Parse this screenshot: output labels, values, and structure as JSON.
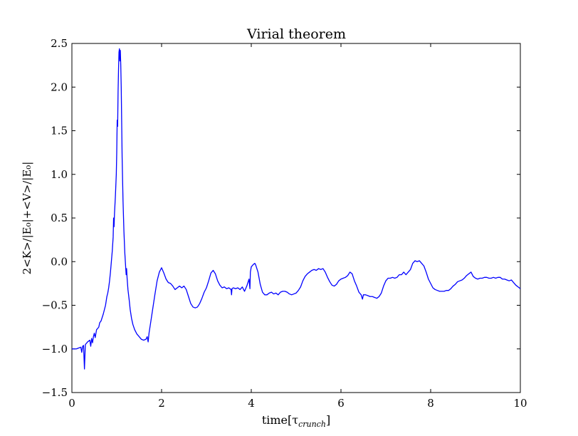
{
  "chart_data": {
    "type": "line",
    "title": "Virial theorem",
    "xlabel": "time[τ",
    "xlabel_sub": "crunch",
    "xlabel_close": "]",
    "ylabel": "2<K>/|E₀|+<V>/|E₀|",
    "xlim": [
      0,
      10
    ],
    "ylim": [
      -1.5,
      2.5
    ],
    "xticks": [
      0,
      2,
      4,
      6,
      8,
      10
    ],
    "xtick_labels": [
      "0",
      "2",
      "4",
      "6",
      "8",
      "10"
    ],
    "yticks": [
      -1.5,
      -1.0,
      -0.5,
      0.0,
      0.5,
      1.0,
      1.5,
      2.0,
      2.5
    ],
    "ytick_labels": [
      "−1.5",
      "−1.0",
      "−0.5",
      "0.0",
      "0.5",
      "1.0",
      "1.5",
      "2.0",
      "2.5"
    ],
    "grid": false,
    "series": [
      {
        "color": "#0000ff",
        "points": [
          [
            0.0,
            -1.0
          ],
          [
            0.1,
            -1.0
          ],
          [
            0.15,
            -0.99
          ],
          [
            0.2,
            -0.98
          ],
          [
            0.22,
            -1.04
          ],
          [
            0.24,
            -0.97
          ],
          [
            0.26,
            -0.96
          ],
          [
            0.28,
            -1.23
          ],
          [
            0.3,
            -0.95
          ],
          [
            0.35,
            -0.92
          ],
          [
            0.4,
            -0.9
          ],
          [
            0.42,
            -0.97
          ],
          [
            0.44,
            -0.88
          ],
          [
            0.46,
            -0.93
          ],
          [
            0.48,
            -0.86
          ],
          [
            0.5,
            -0.82
          ],
          [
            0.52,
            -0.87
          ],
          [
            0.55,
            -0.78
          ],
          [
            0.6,
            -0.75
          ],
          [
            0.62,
            -0.7
          ],
          [
            0.65,
            -0.68
          ],
          [
            0.7,
            -0.6
          ],
          [
            0.75,
            -0.5
          ],
          [
            0.78,
            -0.4
          ],
          [
            0.8,
            -0.36
          ],
          [
            0.82,
            -0.3
          ],
          [
            0.84,
            -0.22
          ],
          [
            0.86,
            -0.12
          ],
          [
            0.88,
            0.0
          ],
          [
            0.9,
            0.12
          ],
          [
            0.92,
            0.28
          ],
          [
            0.93,
            0.5
          ],
          [
            0.94,
            0.4
          ],
          [
            0.95,
            0.55
          ],
          [
            0.97,
            0.75
          ],
          [
            0.99,
            1.0
          ],
          [
            1.0,
            1.25
          ],
          [
            1.01,
            1.62
          ],
          [
            1.02,
            1.55
          ],
          [
            1.03,
            1.95
          ],
          [
            1.04,
            2.2
          ],
          [
            1.05,
            2.4
          ],
          [
            1.06,
            2.44
          ],
          [
            1.07,
            2.3
          ],
          [
            1.08,
            2.42
          ],
          [
            1.09,
            2.25
          ],
          [
            1.1,
            2.0
          ],
          [
            1.11,
            1.6
          ],
          [
            1.12,
            1.2
          ],
          [
            1.14,
            0.7
          ],
          [
            1.16,
            0.35
          ],
          [
            1.18,
            0.1
          ],
          [
            1.2,
            -0.07
          ],
          [
            1.21,
            -0.15
          ],
          [
            1.22,
            -0.08
          ],
          [
            1.23,
            -0.18
          ],
          [
            1.25,
            -0.32
          ],
          [
            1.28,
            -0.45
          ],
          [
            1.3,
            -0.55
          ],
          [
            1.33,
            -0.65
          ],
          [
            1.36,
            -0.72
          ],
          [
            1.4,
            -0.78
          ],
          [
            1.45,
            -0.83
          ],
          [
            1.5,
            -0.86
          ],
          [
            1.55,
            -0.89
          ],
          [
            1.6,
            -0.9
          ],
          [
            1.65,
            -0.89
          ],
          [
            1.68,
            -0.86
          ],
          [
            1.7,
            -0.92
          ],
          [
            1.72,
            -0.82
          ],
          [
            1.75,
            -0.72
          ],
          [
            1.8,
            -0.55
          ],
          [
            1.85,
            -0.38
          ],
          [
            1.9,
            -0.22
          ],
          [
            1.95,
            -0.12
          ],
          [
            2.0,
            -0.07
          ],
          [
            2.05,
            -0.13
          ],
          [
            2.1,
            -0.2
          ],
          [
            2.15,
            -0.24
          ],
          [
            2.2,
            -0.25
          ],
          [
            2.25,
            -0.28
          ],
          [
            2.3,
            -0.32
          ],
          [
            2.35,
            -0.3
          ],
          [
            2.4,
            -0.28
          ],
          [
            2.45,
            -0.3
          ],
          [
            2.5,
            -0.28
          ],
          [
            2.55,
            -0.32
          ],
          [
            2.6,
            -0.4
          ],
          [
            2.65,
            -0.48
          ],
          [
            2.7,
            -0.52
          ],
          [
            2.75,
            -0.53
          ],
          [
            2.8,
            -0.52
          ],
          [
            2.85,
            -0.48
          ],
          [
            2.9,
            -0.42
          ],
          [
            2.95,
            -0.35
          ],
          [
            3.0,
            -0.3
          ],
          [
            3.05,
            -0.22
          ],
          [
            3.1,
            -0.13
          ],
          [
            3.15,
            -0.1
          ],
          [
            3.2,
            -0.14
          ],
          [
            3.25,
            -0.22
          ],
          [
            3.3,
            -0.27
          ],
          [
            3.35,
            -0.3
          ],
          [
            3.4,
            -0.29
          ],
          [
            3.45,
            -0.31
          ],
          [
            3.5,
            -0.3
          ],
          [
            3.55,
            -0.32
          ],
          [
            3.56,
            -0.38
          ],
          [
            3.57,
            -0.31
          ],
          [
            3.6,
            -0.3
          ],
          [
            3.65,
            -0.31
          ],
          [
            3.7,
            -0.3
          ],
          [
            3.75,
            -0.32
          ],
          [
            3.8,
            -0.29
          ],
          [
            3.85,
            -0.34
          ],
          [
            3.9,
            -0.28
          ],
          [
            3.95,
            -0.2
          ],
          [
            3.97,
            -0.31
          ],
          [
            3.98,
            -0.12
          ],
          [
            4.0,
            -0.06
          ],
          [
            4.05,
            -0.03
          ],
          [
            4.08,
            -0.02
          ],
          [
            4.1,
            -0.04
          ],
          [
            4.15,
            -0.12
          ],
          [
            4.2,
            -0.26
          ],
          [
            4.25,
            -0.35
          ],
          [
            4.3,
            -0.38
          ],
          [
            4.35,
            -0.38
          ],
          [
            4.4,
            -0.36
          ],
          [
            4.45,
            -0.35
          ],
          [
            4.5,
            -0.37
          ],
          [
            4.55,
            -0.36
          ],
          [
            4.6,
            -0.38
          ],
          [
            4.65,
            -0.35
          ],
          [
            4.7,
            -0.34
          ],
          [
            4.75,
            -0.34
          ],
          [
            4.8,
            -0.35
          ],
          [
            4.85,
            -0.37
          ],
          [
            4.9,
            -0.38
          ],
          [
            4.95,
            -0.37
          ],
          [
            5.0,
            -0.36
          ],
          [
            5.05,
            -0.33
          ],
          [
            5.1,
            -0.29
          ],
          [
            5.15,
            -0.22
          ],
          [
            5.2,
            -0.17
          ],
          [
            5.25,
            -0.14
          ],
          [
            5.3,
            -0.12
          ],
          [
            5.35,
            -0.1
          ],
          [
            5.4,
            -0.09
          ],
          [
            5.45,
            -0.1
          ],
          [
            5.5,
            -0.08
          ],
          [
            5.55,
            -0.09
          ],
          [
            5.6,
            -0.08
          ],
          [
            5.65,
            -0.12
          ],
          [
            5.7,
            -0.18
          ],
          [
            5.75,
            -0.23
          ],
          [
            5.8,
            -0.27
          ],
          [
            5.85,
            -0.28
          ],
          [
            5.9,
            -0.26
          ],
          [
            5.95,
            -0.22
          ],
          [
            6.0,
            -0.2
          ],
          [
            6.05,
            -0.19
          ],
          [
            6.1,
            -0.18
          ],
          [
            6.15,
            -0.16
          ],
          [
            6.2,
            -0.12
          ],
          [
            6.25,
            -0.14
          ],
          [
            6.3,
            -0.22
          ],
          [
            6.35,
            -0.28
          ],
          [
            6.4,
            -0.35
          ],
          [
            6.45,
            -0.38
          ],
          [
            6.48,
            -0.43
          ],
          [
            6.5,
            -0.38
          ],
          [
            6.55,
            -0.38
          ],
          [
            6.6,
            -0.39
          ],
          [
            6.65,
            -0.4
          ],
          [
            6.7,
            -0.4
          ],
          [
            6.75,
            -0.41
          ],
          [
            6.8,
            -0.42
          ],
          [
            6.85,
            -0.4
          ],
          [
            6.9,
            -0.36
          ],
          [
            6.95,
            -0.28
          ],
          [
            7.0,
            -0.22
          ],
          [
            7.05,
            -0.19
          ],
          [
            7.1,
            -0.19
          ],
          [
            7.15,
            -0.18
          ],
          [
            7.2,
            -0.19
          ],
          [
            7.25,
            -0.18
          ],
          [
            7.3,
            -0.15
          ],
          [
            7.35,
            -0.15
          ],
          [
            7.4,
            -0.12
          ],
          [
            7.45,
            -0.15
          ],
          [
            7.5,
            -0.12
          ],
          [
            7.55,
            -0.09
          ],
          [
            7.6,
            -0.02
          ],
          [
            7.65,
            0.01
          ],
          [
            7.7,
            0.0
          ],
          [
            7.75,
            0.01
          ],
          [
            7.8,
            -0.02
          ],
          [
            7.85,
            -0.05
          ],
          [
            7.9,
            -0.12
          ],
          [
            7.95,
            -0.2
          ],
          [
            8.0,
            -0.25
          ],
          [
            8.05,
            -0.3
          ],
          [
            8.1,
            -0.32
          ],
          [
            8.15,
            -0.33
          ],
          [
            8.2,
            -0.34
          ],
          [
            8.25,
            -0.34
          ],
          [
            8.3,
            -0.34
          ],
          [
            8.35,
            -0.33
          ],
          [
            8.4,
            -0.33
          ],
          [
            8.45,
            -0.31
          ],
          [
            8.5,
            -0.28
          ],
          [
            8.55,
            -0.26
          ],
          [
            8.6,
            -0.23
          ],
          [
            8.65,
            -0.22
          ],
          [
            8.7,
            -0.21
          ],
          [
            8.75,
            -0.19
          ],
          [
            8.8,
            -0.16
          ],
          [
            8.85,
            -0.14
          ],
          [
            8.9,
            -0.12
          ],
          [
            8.95,
            -0.17
          ],
          [
            9.0,
            -0.19
          ],
          [
            9.05,
            -0.2
          ],
          [
            9.1,
            -0.19
          ],
          [
            9.15,
            -0.19
          ],
          [
            9.2,
            -0.18
          ],
          [
            9.25,
            -0.18
          ],
          [
            9.3,
            -0.19
          ],
          [
            9.35,
            -0.19
          ],
          [
            9.4,
            -0.18
          ],
          [
            9.45,
            -0.19
          ],
          [
            9.5,
            -0.18
          ],
          [
            9.55,
            -0.18
          ],
          [
            9.6,
            -0.2
          ],
          [
            9.65,
            -0.2
          ],
          [
            9.7,
            -0.21
          ],
          [
            9.75,
            -0.22
          ],
          [
            9.8,
            -0.21
          ],
          [
            9.85,
            -0.24
          ],
          [
            9.9,
            -0.27
          ],
          [
            9.95,
            -0.29
          ],
          [
            10.0,
            -0.31
          ]
        ]
      }
    ]
  }
}
